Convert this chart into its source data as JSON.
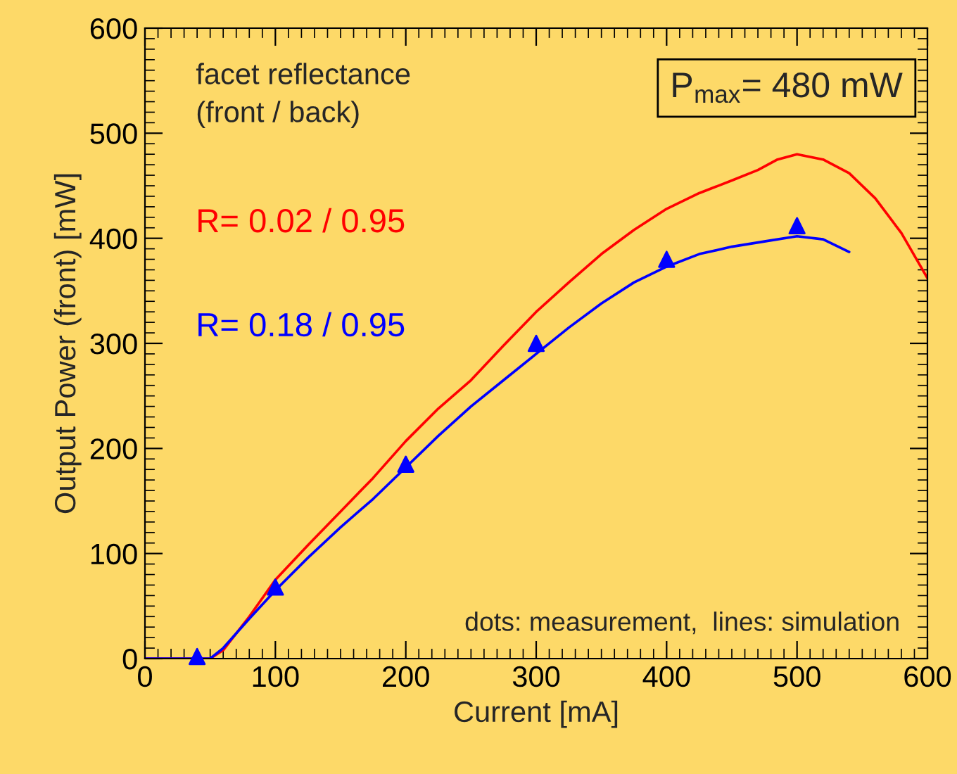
{
  "chart_data": {
    "type": "line",
    "xlabel": "Current [mA]",
    "ylabel": "Output Power (front) [mW]",
    "xlim": [
      0,
      600
    ],
    "ylim": [
      0,
      600
    ],
    "xticks": [
      0,
      100,
      200,
      300,
      400,
      500,
      600
    ],
    "yticks": [
      0,
      100,
      200,
      300,
      400,
      500,
      600
    ],
    "grid": false,
    "series": [
      {
        "name": "R= 0.02 / 0.95",
        "color": "#ff0000",
        "marker": "none",
        "x": [
          0,
          50,
          60,
          80,
          100,
          125,
          150,
          175,
          200,
          225,
          250,
          275,
          300,
          325,
          350,
          375,
          400,
          425,
          450,
          470,
          485,
          500,
          520,
          540,
          560,
          580,
          600
        ],
        "values": [
          0,
          0,
          8,
          40,
          75,
          108,
          140,
          172,
          207,
          238,
          265,
          298,
          330,
          358,
          385,
          408,
          428,
          443,
          455,
          465,
          475,
          480,
          475,
          462,
          438,
          405,
          362
        ]
      },
      {
        "name": "R= 0.18 / 0.95",
        "color": "#0000ff",
        "marker": "none",
        "x": [
          0,
          50,
          60,
          80,
          100,
          125,
          150,
          175,
          200,
          225,
          250,
          275,
          300,
          325,
          350,
          375,
          400,
          425,
          450,
          475,
          500,
          520,
          540
        ],
        "values": [
          0,
          0,
          10,
          38,
          65,
          96,
          125,
          152,
          182,
          212,
          240,
          265,
          290,
          315,
          338,
          358,
          373,
          385,
          392,
          397,
          402,
          399,
          387
        ]
      },
      {
        "color": "#0000ff",
        "type": "scatter",
        "marker": "triangle",
        "x": [
          40,
          100,
          200,
          300,
          400,
          500
        ],
        "values": [
          2,
          68,
          185,
          300,
          380,
          412
        ]
      }
    ],
    "annotations": [
      "facet reflectance\n(front / back)",
      "P$_{max}$= 480 mW",
      "dots: measurement,  lines: simulation"
    ]
  }
}
